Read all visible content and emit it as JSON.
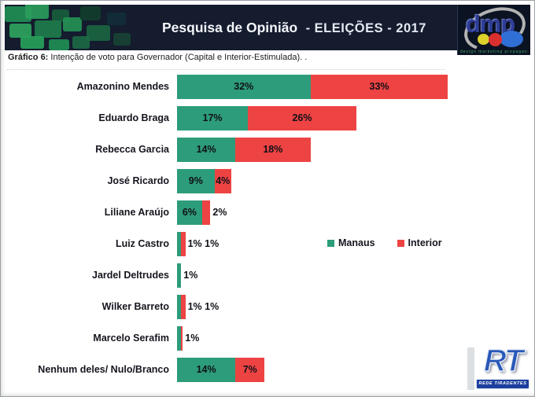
{
  "header": {
    "title_main": "Pesquisa de Opinião",
    "title_rest": "- ELEIÇÕES - 2017",
    "bg_color": "#141c2e"
  },
  "subtitle": {
    "prefix": "Gráfico 6:",
    "text": " Intenção de voto para Governador (Capital e Interior-Estimulada). ."
  },
  "legend": {
    "items": [
      {
        "label": "Manaus",
        "color": "#2d9c7a"
      },
      {
        "label": "Interior",
        "color": "#ee4343"
      }
    ]
  },
  "chart_data": {
    "type": "bar",
    "orientation": "horizontal_stacked",
    "title": "Intenção de voto para Governador (Capital e Interior-Estimulada)",
    "categories": [
      "Amazonino Mendes",
      "Eduardo Braga",
      "Rebecca Garcia",
      "José Ricardo",
      "Liliane Araújo",
      "Luiz Castro",
      "Jardel Deltrudes",
      "Wilker Barreto",
      "Marcelo Serafim",
      "Nenhum deles/ Nulo/Branco"
    ],
    "series": [
      {
        "name": "Manaus",
        "color": "#2d9c7a",
        "values": [
          32,
          17,
          14,
          9,
          6,
          1,
          1,
          1,
          1,
          14
        ]
      },
      {
        "name": "Interior",
        "color": "#ee4343",
        "values": [
          33,
          26,
          18,
          4,
          2,
          1,
          0,
          1,
          0,
          7
        ]
      }
    ],
    "unit": "%",
    "xlim": [
      0,
      66
    ],
    "grid": false,
    "legend_position": "middle-right",
    "unlabeled_red_sliver_rows": [
      8
    ]
  },
  "logos": {
    "dmp": {
      "text": "dmp",
      "tagline": "design  marketing  propaganda"
    },
    "rt": {
      "text": "RT",
      "banner": "REDE TIRADENTES"
    }
  },
  "colors": {
    "manaus_green": "#2d9c7a",
    "interior_red": "#ee4343",
    "header_navy": "#141c2e",
    "label_dark": "#15151f"
  }
}
